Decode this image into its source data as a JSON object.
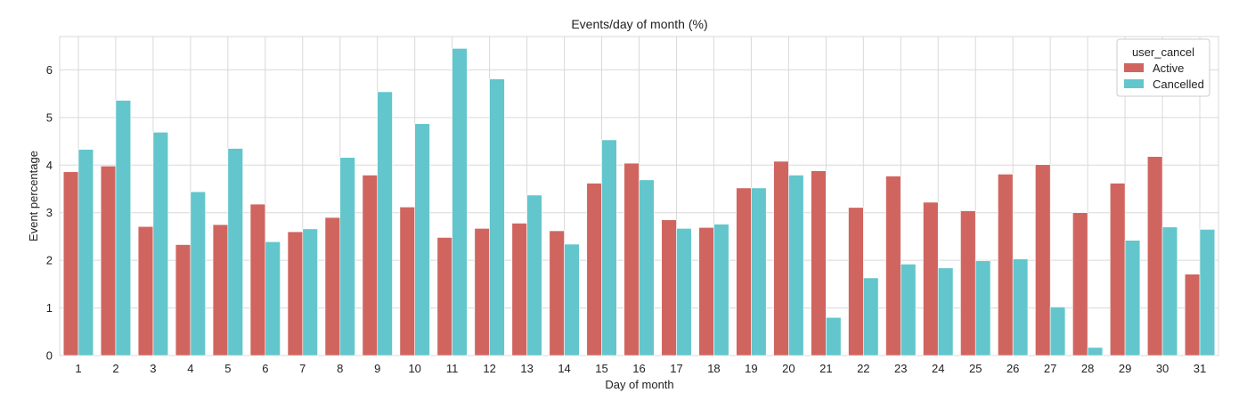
{
  "chart_data": {
    "type": "bar",
    "title": "Events/day of month (%)",
    "xlabel": "Day of month",
    "ylabel": "Event percentage",
    "ylim": [
      0,
      6.7
    ],
    "yticks": [
      0,
      1,
      2,
      3,
      4,
      5,
      6
    ],
    "grid": true,
    "categories": [
      "1",
      "2",
      "3",
      "4",
      "5",
      "6",
      "7",
      "8",
      "9",
      "10",
      "11",
      "12",
      "13",
      "14",
      "15",
      "16",
      "17",
      "18",
      "19",
      "20",
      "21",
      "22",
      "23",
      "24",
      "25",
      "26",
      "27",
      "28",
      "29",
      "30",
      "31"
    ],
    "legend": {
      "title": "user_cancel",
      "placement": "top-right"
    },
    "series": [
      {
        "name": "Active",
        "color": "#d0655f",
        "values": [
          3.86,
          3.98,
          2.71,
          2.33,
          2.75,
          3.18,
          2.6,
          2.9,
          3.79,
          3.12,
          2.48,
          2.67,
          2.78,
          2.62,
          3.62,
          4.04,
          2.85,
          2.69,
          3.52,
          4.08,
          3.88,
          3.11,
          3.77,
          3.22,
          3.04,
          3.81,
          4.01,
          3.0,
          3.62,
          4.18,
          1.71
        ]
      },
      {
        "name": "Cancelled",
        "color": "#62c6cc",
        "values": [
          4.33,
          5.36,
          4.69,
          3.44,
          4.35,
          2.39,
          2.66,
          4.16,
          5.54,
          4.87,
          6.45,
          5.81,
          3.37,
          2.34,
          4.53,
          3.69,
          2.67,
          2.76,
          3.52,
          3.79,
          0.8,
          1.63,
          1.92,
          1.84,
          1.99,
          2.03,
          1.02,
          0.17,
          2.42,
          2.7,
          2.65
        ]
      }
    ]
  }
}
